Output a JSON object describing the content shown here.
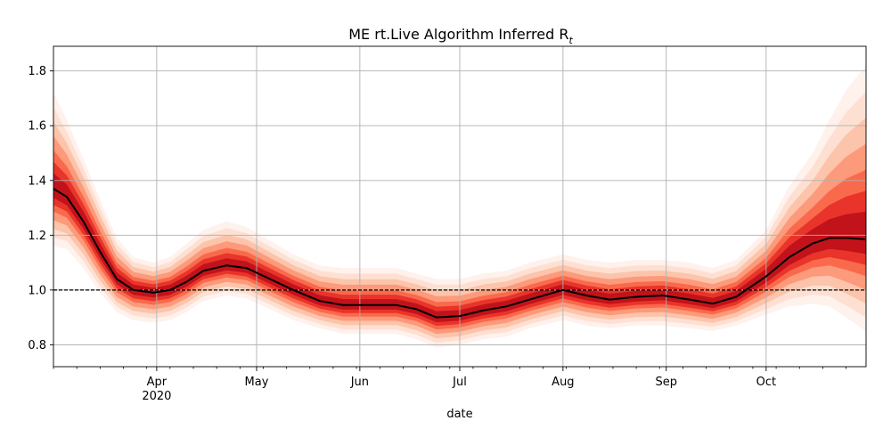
{
  "chart_data": {
    "type": "line",
    "title": "ME rt.Live Algorithm Inferred R",
    "title_subscript": "t",
    "xlabel": "date",
    "ylabel": "",
    "x_range": [
      "2020-03-01",
      "2020-10-31"
    ],
    "ylim": [
      0.72,
      1.89
    ],
    "grid": true,
    "x_ticks": [
      {
        "date": "2020-04-01",
        "label": "Apr",
        "sublabel": "2020"
      },
      {
        "date": "2020-05-01",
        "label": "May",
        "sublabel": ""
      },
      {
        "date": "2020-06-01",
        "label": "Jun",
        "sublabel": ""
      },
      {
        "date": "2020-07-01",
        "label": "Jul",
        "sublabel": ""
      },
      {
        "date": "2020-08-01",
        "label": "Aug",
        "sublabel": ""
      },
      {
        "date": "2020-09-01",
        "label": "Sep",
        "sublabel": ""
      },
      {
        "date": "2020-10-01",
        "label": "Oct",
        "sublabel": ""
      }
    ],
    "y_ticks": [
      {
        "value": 0.8,
        "label": "0.8"
      },
      {
        "value": 1.0,
        "label": "1.0"
      },
      {
        "value": 1.2,
        "label": "1.2"
      },
      {
        "value": 1.4,
        "label": "1.4"
      },
      {
        "value": 1.6,
        "label": "1.6"
      },
      {
        "value": 1.8,
        "label": "1.8"
      }
    ],
    "reference_line": {
      "value": 1.0,
      "style": "dashed",
      "color": "#000000"
    },
    "series": [
      {
        "values": [
          {
            "x": "2020-03-01",
            "y": 1.37,
            "low": 1.16,
            "high": 1.72
          },
          {
            "x": "2020-03-05",
            "y": 1.34,
            "low": 1.15,
            "high": 1.62
          },
          {
            "x": "2020-03-10",
            "y": 1.25,
            "low": 1.08,
            "high": 1.48
          },
          {
            "x": "2020-03-15",
            "y": 1.14,
            "low": 0.99,
            "high": 1.33
          },
          {
            "x": "2020-03-20",
            "y": 1.04,
            "low": 0.92,
            "high": 1.19
          },
          {
            "x": "2020-03-25",
            "y": 1.0,
            "low": 0.89,
            "high": 1.12
          },
          {
            "x": "2020-03-31",
            "y": 0.99,
            "low": 0.88,
            "high": 1.1
          },
          {
            "x": "2020-04-05",
            "y": 1.0,
            "low": 0.89,
            "high": 1.12
          },
          {
            "x": "2020-04-10",
            "y": 1.03,
            "low": 0.92,
            "high": 1.17
          },
          {
            "x": "2020-04-15",
            "y": 1.07,
            "low": 0.96,
            "high": 1.22
          },
          {
            "x": "2020-04-22",
            "y": 1.09,
            "low": 0.98,
            "high": 1.25
          },
          {
            "x": "2020-04-28",
            "y": 1.08,
            "low": 0.97,
            "high": 1.23
          },
          {
            "x": "2020-05-05",
            "y": 1.04,
            "low": 0.93,
            "high": 1.18
          },
          {
            "x": "2020-05-12",
            "y": 1.0,
            "low": 0.89,
            "high": 1.13
          },
          {
            "x": "2020-05-20",
            "y": 0.96,
            "low": 0.86,
            "high": 1.09
          },
          {
            "x": "2020-05-27",
            "y": 0.945,
            "low": 0.84,
            "high": 1.08
          },
          {
            "x": "2020-06-05",
            "y": 0.945,
            "low": 0.84,
            "high": 1.08
          },
          {
            "x": "2020-06-12",
            "y": 0.945,
            "low": 0.84,
            "high": 1.08
          },
          {
            "x": "2020-06-18",
            "y": 0.93,
            "low": 0.82,
            "high": 1.06
          },
          {
            "x": "2020-06-24",
            "y": 0.9,
            "low": 0.79,
            "high": 1.04
          },
          {
            "x": "2020-07-01",
            "y": 0.905,
            "low": 0.8,
            "high": 1.04
          },
          {
            "x": "2020-07-08",
            "y": 0.925,
            "low": 0.82,
            "high": 1.06
          },
          {
            "x": "2020-07-15",
            "y": 0.94,
            "low": 0.83,
            "high": 1.07
          },
          {
            "x": "2020-07-22",
            "y": 0.965,
            "low": 0.86,
            "high": 1.1
          },
          {
            "x": "2020-08-01",
            "y": 1.0,
            "low": 0.89,
            "high": 1.13
          },
          {
            "x": "2020-08-08",
            "y": 0.98,
            "low": 0.87,
            "high": 1.11
          },
          {
            "x": "2020-08-15",
            "y": 0.965,
            "low": 0.86,
            "high": 1.1
          },
          {
            "x": "2020-08-23",
            "y": 0.975,
            "low": 0.87,
            "high": 1.11
          },
          {
            "x": "2020-08-31",
            "y": 0.98,
            "low": 0.87,
            "high": 1.11
          },
          {
            "x": "2020-09-08",
            "y": 0.965,
            "low": 0.86,
            "high": 1.1
          },
          {
            "x": "2020-09-15",
            "y": 0.95,
            "low": 0.85,
            "high": 1.08
          },
          {
            "x": "2020-09-22",
            "y": 0.975,
            "low": 0.87,
            "high": 1.11
          },
          {
            "x": "2020-10-01",
            "y": 1.05,
            "low": 0.91,
            "high": 1.22
          },
          {
            "x": "2020-10-08",
            "y": 1.12,
            "low": 0.94,
            "high": 1.38
          },
          {
            "x": "2020-10-15",
            "y": 1.17,
            "low": 0.95,
            "high": 1.5
          },
          {
            "x": "2020-10-20",
            "y": 1.19,
            "low": 0.94,
            "high": 1.62
          },
          {
            "x": "2020-10-25",
            "y": 1.19,
            "low": 0.9,
            "high": 1.73
          },
          {
            "x": "2020-10-31",
            "y": 1.185,
            "low": 0.85,
            "high": 1.82
          }
        ]
      }
    ],
    "colors": {
      "line": "#000000",
      "band_core": "#c8101a",
      "band_outer": "#fee5d9",
      "grid": "#b0b0b0"
    }
  }
}
